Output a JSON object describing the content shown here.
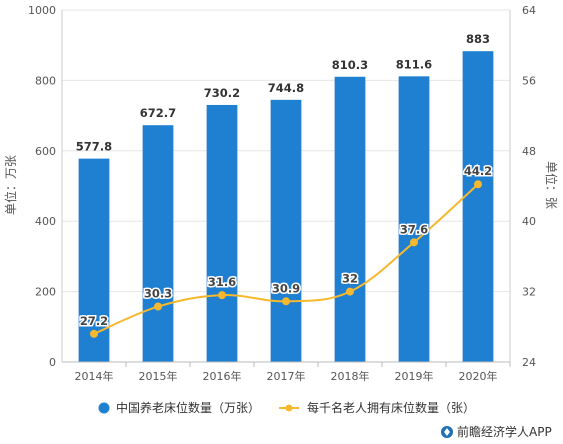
{
  "chart_data": {
    "type": "bar",
    "categories": [
      "2014年",
      "2015年",
      "2016年",
      "2017年",
      "2018年",
      "2019年",
      "2020年"
    ],
    "series": [
      {
        "name": "中国养老床位数量（万张）",
        "type": "bar",
        "axis": "left",
        "color": "#1f7fd1",
        "values": [
          577.8,
          672.7,
          730.2,
          744.8,
          810.3,
          811.6,
          883
        ]
      },
      {
        "name": "每千名老人拥有床位数量（张）",
        "type": "line",
        "axis": "right",
        "color": "#f5b82e",
        "values": [
          27.2,
          30.3,
          31.6,
          30.9,
          32,
          37.6,
          44.2
        ]
      }
    ],
    "ylabel_left": "单位：万张",
    "ylabel_right": "单位：张",
    "ylim_left": [
      0,
      1000
    ],
    "yticks_left": [
      0,
      200,
      400,
      600,
      800,
      1000
    ],
    "ylim_right": [
      24,
      64
    ],
    "yticks_right": [
      24,
      32,
      40,
      48,
      56,
      64
    ],
    "grid": true,
    "legend_position": "bottom"
  },
  "credit": "前瞻经济学人APP"
}
